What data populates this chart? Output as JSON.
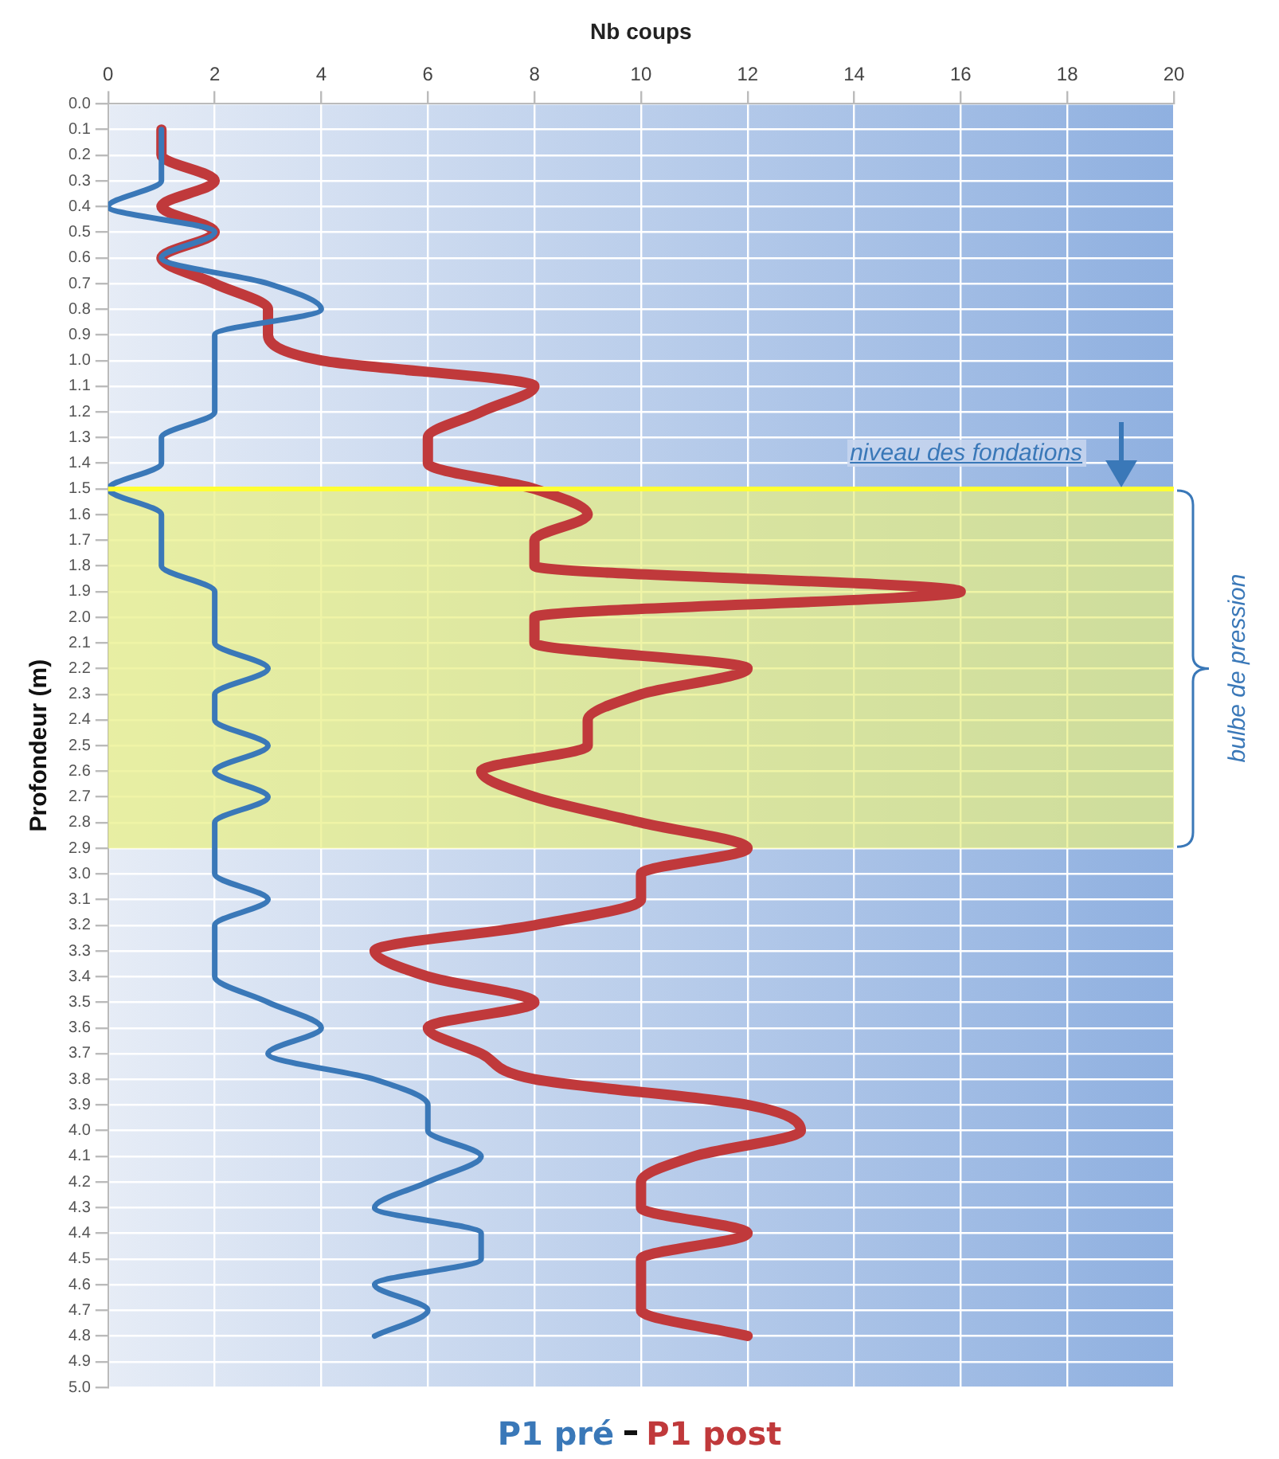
{
  "chart_data": {
    "type": "line",
    "orientation": "horizontal",
    "xlabel": "Nb coups",
    "ylabel": "Profondeur (m)",
    "categories": [
      "0.0",
      "0.1",
      "0.2",
      "0.3",
      "0.4",
      "0.5",
      "0.6",
      "0.7",
      "0.8",
      "0.9",
      "1.0",
      "1.1",
      "1.2",
      "1.3",
      "1.4",
      "1.5",
      "1.6",
      "1.7",
      "1.8",
      "1.9",
      "2.0",
      "2.1",
      "2.2",
      "2.3",
      "2.4",
      "2.5",
      "2.6",
      "2.7",
      "2.8",
      "2.9",
      "3.0",
      "3.1",
      "3.2",
      "3.3",
      "3.4",
      "3.5",
      "3.6",
      "3.7",
      "3.8",
      "3.9",
      "4.0",
      "4.1",
      "4.2",
      "4.3",
      "4.4",
      "4.5",
      "4.6",
      "4.7",
      "4.8",
      "4.9",
      "5.0"
    ],
    "series": [
      {
        "name": "P1 pré",
        "color": "#3a78b8",
        "values": [
          null,
          1,
          1,
          1,
          0,
          2,
          1,
          3,
          4,
          2,
          2,
          2,
          2,
          1,
          1,
          0,
          1,
          1,
          1,
          2,
          2,
          2,
          3,
          2,
          2,
          3,
          2,
          3,
          2,
          2,
          2,
          3,
          2,
          2,
          2,
          3,
          4,
          3,
          5,
          6,
          6,
          7,
          6,
          5,
          7,
          7,
          5,
          6,
          5,
          null,
          null
        ]
      },
      {
        "name": "P1 post",
        "color": "#c0393b",
        "values": [
          null,
          1,
          1,
          2,
          1,
          2,
          1,
          2,
          3,
          3,
          4,
          8,
          7,
          6,
          6,
          8,
          9,
          8,
          8,
          16,
          8,
          8,
          12,
          10,
          9,
          9,
          7,
          8,
          10,
          12,
          10,
          10,
          8,
          5,
          6,
          8,
          6,
          7,
          8,
          12,
          13,
          11,
          10,
          10,
          12,
          10,
          10,
          10,
          12,
          null,
          null
        ]
      }
    ],
    "xlim": [
      0,
      20
    ],
    "xticks": [
      0,
      2,
      4,
      6,
      8,
      10,
      12,
      14,
      16,
      18,
      20
    ],
    "grid": true,
    "legend": "bottom",
    "marker": "none",
    "line_style": "solid",
    "ref_lines": [
      {
        "axis": "y",
        "value": "1.5",
        "color": "#ffff33"
      }
    ],
    "bands": [
      {
        "axis": "y",
        "from": "1.5",
        "to": "2.9",
        "color": "#e8f080"
      }
    ],
    "annotations": [
      {
        "text": "niveau des fondations",
        "x": 19,
        "y": "1.5"
      },
      "bulbe de pression"
    ]
  }
}
